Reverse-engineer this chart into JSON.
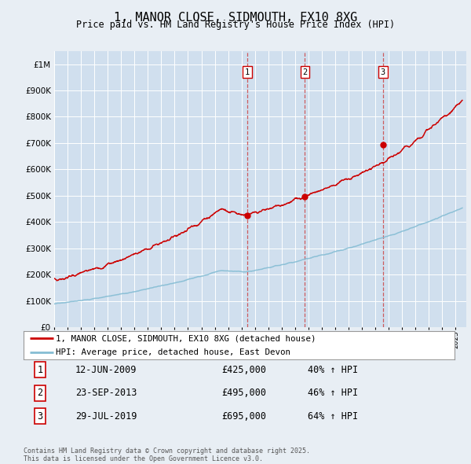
{
  "title": "1, MANOR CLOSE, SIDMOUTH, EX10 8XG",
  "subtitle": "Price paid vs. HM Land Registry's House Price Index (HPI)",
  "background_color": "#e8eef4",
  "plot_bg_color": "#d0dfee",
  "ytick_values": [
    0,
    100000,
    200000,
    300000,
    400000,
    500000,
    600000,
    700000,
    800000,
    900000,
    1000000
  ],
  "ytick_labels": [
    "£0",
    "£100K",
    "£200K",
    "£300K",
    "£400K",
    "£500K",
    "£600K",
    "£700K",
    "£800K",
    "£900K",
    "£1M"
  ],
  "ylim": [
    0,
    1050000
  ],
  "xlim_start": 1995.0,
  "xlim_end": 2025.8,
  "sale_dates": [
    2009.44,
    2013.73,
    2019.57
  ],
  "sale_prices": [
    425000,
    495000,
    695000
  ],
  "sale_labels": [
    "1",
    "2",
    "3"
  ],
  "vline_dates": [
    2009.44,
    2013.73,
    2019.57
  ],
  "legend_entries": [
    "1, MANOR CLOSE, SIDMOUTH, EX10 8XG (detached house)",
    "HPI: Average price, detached house, East Devon"
  ],
  "legend_colors": [
    "#cc0000",
    "#7ab8d9"
  ],
  "table_rows": [
    {
      "num": "1",
      "date": "12-JUN-2009",
      "price": "£425,000",
      "hpi": "40% ↑ HPI"
    },
    {
      "num": "2",
      "date": "23-SEP-2013",
      "price": "£495,000",
      "hpi": "46% ↑ HPI"
    },
    {
      "num": "3",
      "date": "29-JUL-2019",
      "price": "£695,000",
      "hpi": "64% ↑ HPI"
    }
  ],
  "footer": "Contains HM Land Registry data © Crown copyright and database right 2025.\nThis data is licensed under the Open Government Licence v3.0.",
  "red_line_color": "#cc0000",
  "blue_line_color": "#85bdd4"
}
